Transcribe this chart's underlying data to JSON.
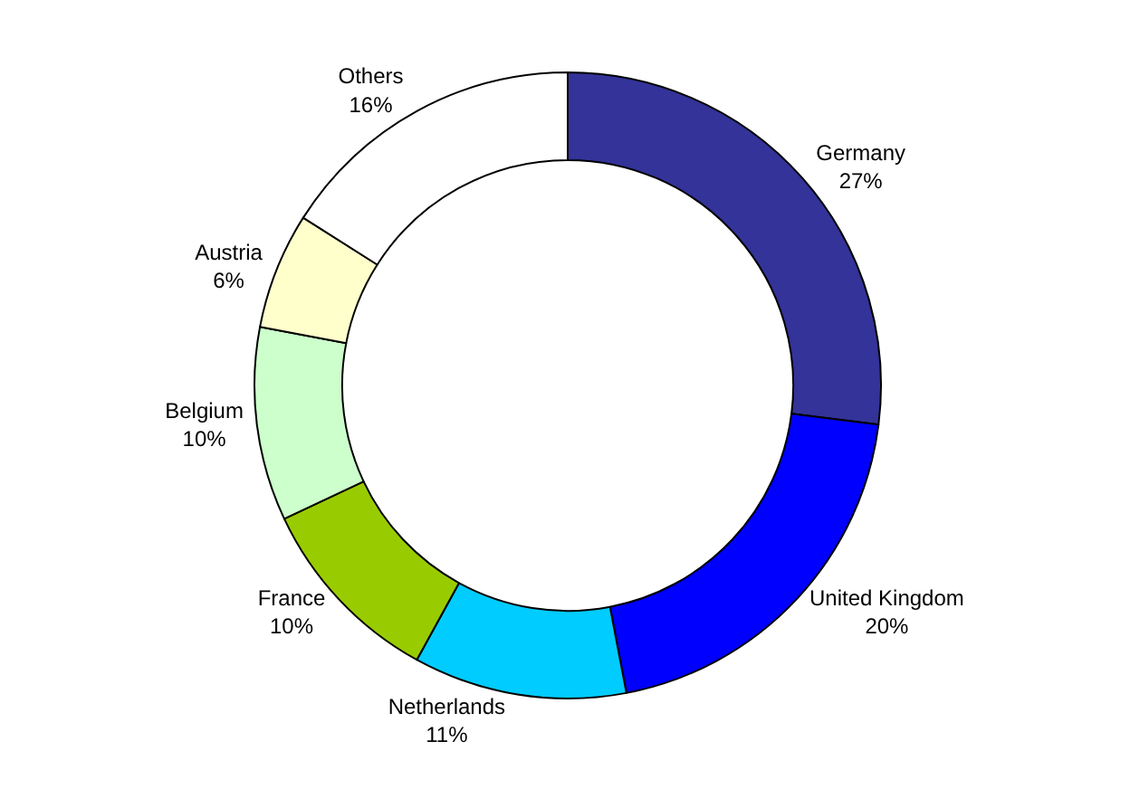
{
  "chart_data": {
    "type": "donut",
    "categories": [
      "Germany",
      "United Kingdom",
      "Netherlands",
      "France",
      "Belgium",
      "Austria",
      "Others"
    ],
    "values": [
      27,
      20,
      11,
      10,
      10,
      6,
      16
    ],
    "value_labels": [
      "27%",
      "20%",
      "11%",
      "10%",
      "10%",
      "6%",
      "16%"
    ],
    "colors": [
      "#333399",
      "#0000ff",
      "#00ccff",
      "#99cc00",
      "#ccffcc",
      "#ffffcc",
      "#ffffff"
    ]
  }
}
